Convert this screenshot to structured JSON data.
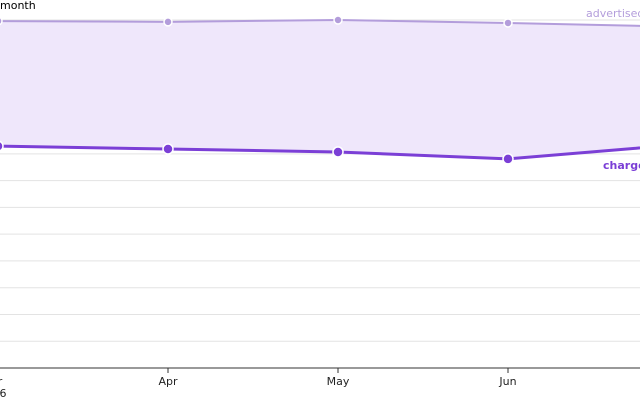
{
  "chart_data": {
    "type": "line",
    "y_label": "month",
    "categories": [
      "r",
      "Apr",
      "May",
      "Jun",
      null
    ],
    "year_label": "6",
    "series": [
      {
        "name": "advertised",
        "color": "#b39ddb",
        "values": [
          12.96,
          12.93,
          13.0,
          12.89,
          12.75
        ]
      },
      {
        "name": "charge",
        "color": "#7b3fd6",
        "values": [
          8.29,
          8.18,
          8.07,
          7.81,
          8.34
        ]
      }
    ],
    "fill_between": "#efe7fb",
    "ylim": [
      0,
      13
    ],
    "yticks": [
      0,
      1,
      2,
      3,
      4,
      5,
      6,
      7,
      8,
      9,
      10,
      11,
      12,
      13
    ],
    "grid": true
  }
}
